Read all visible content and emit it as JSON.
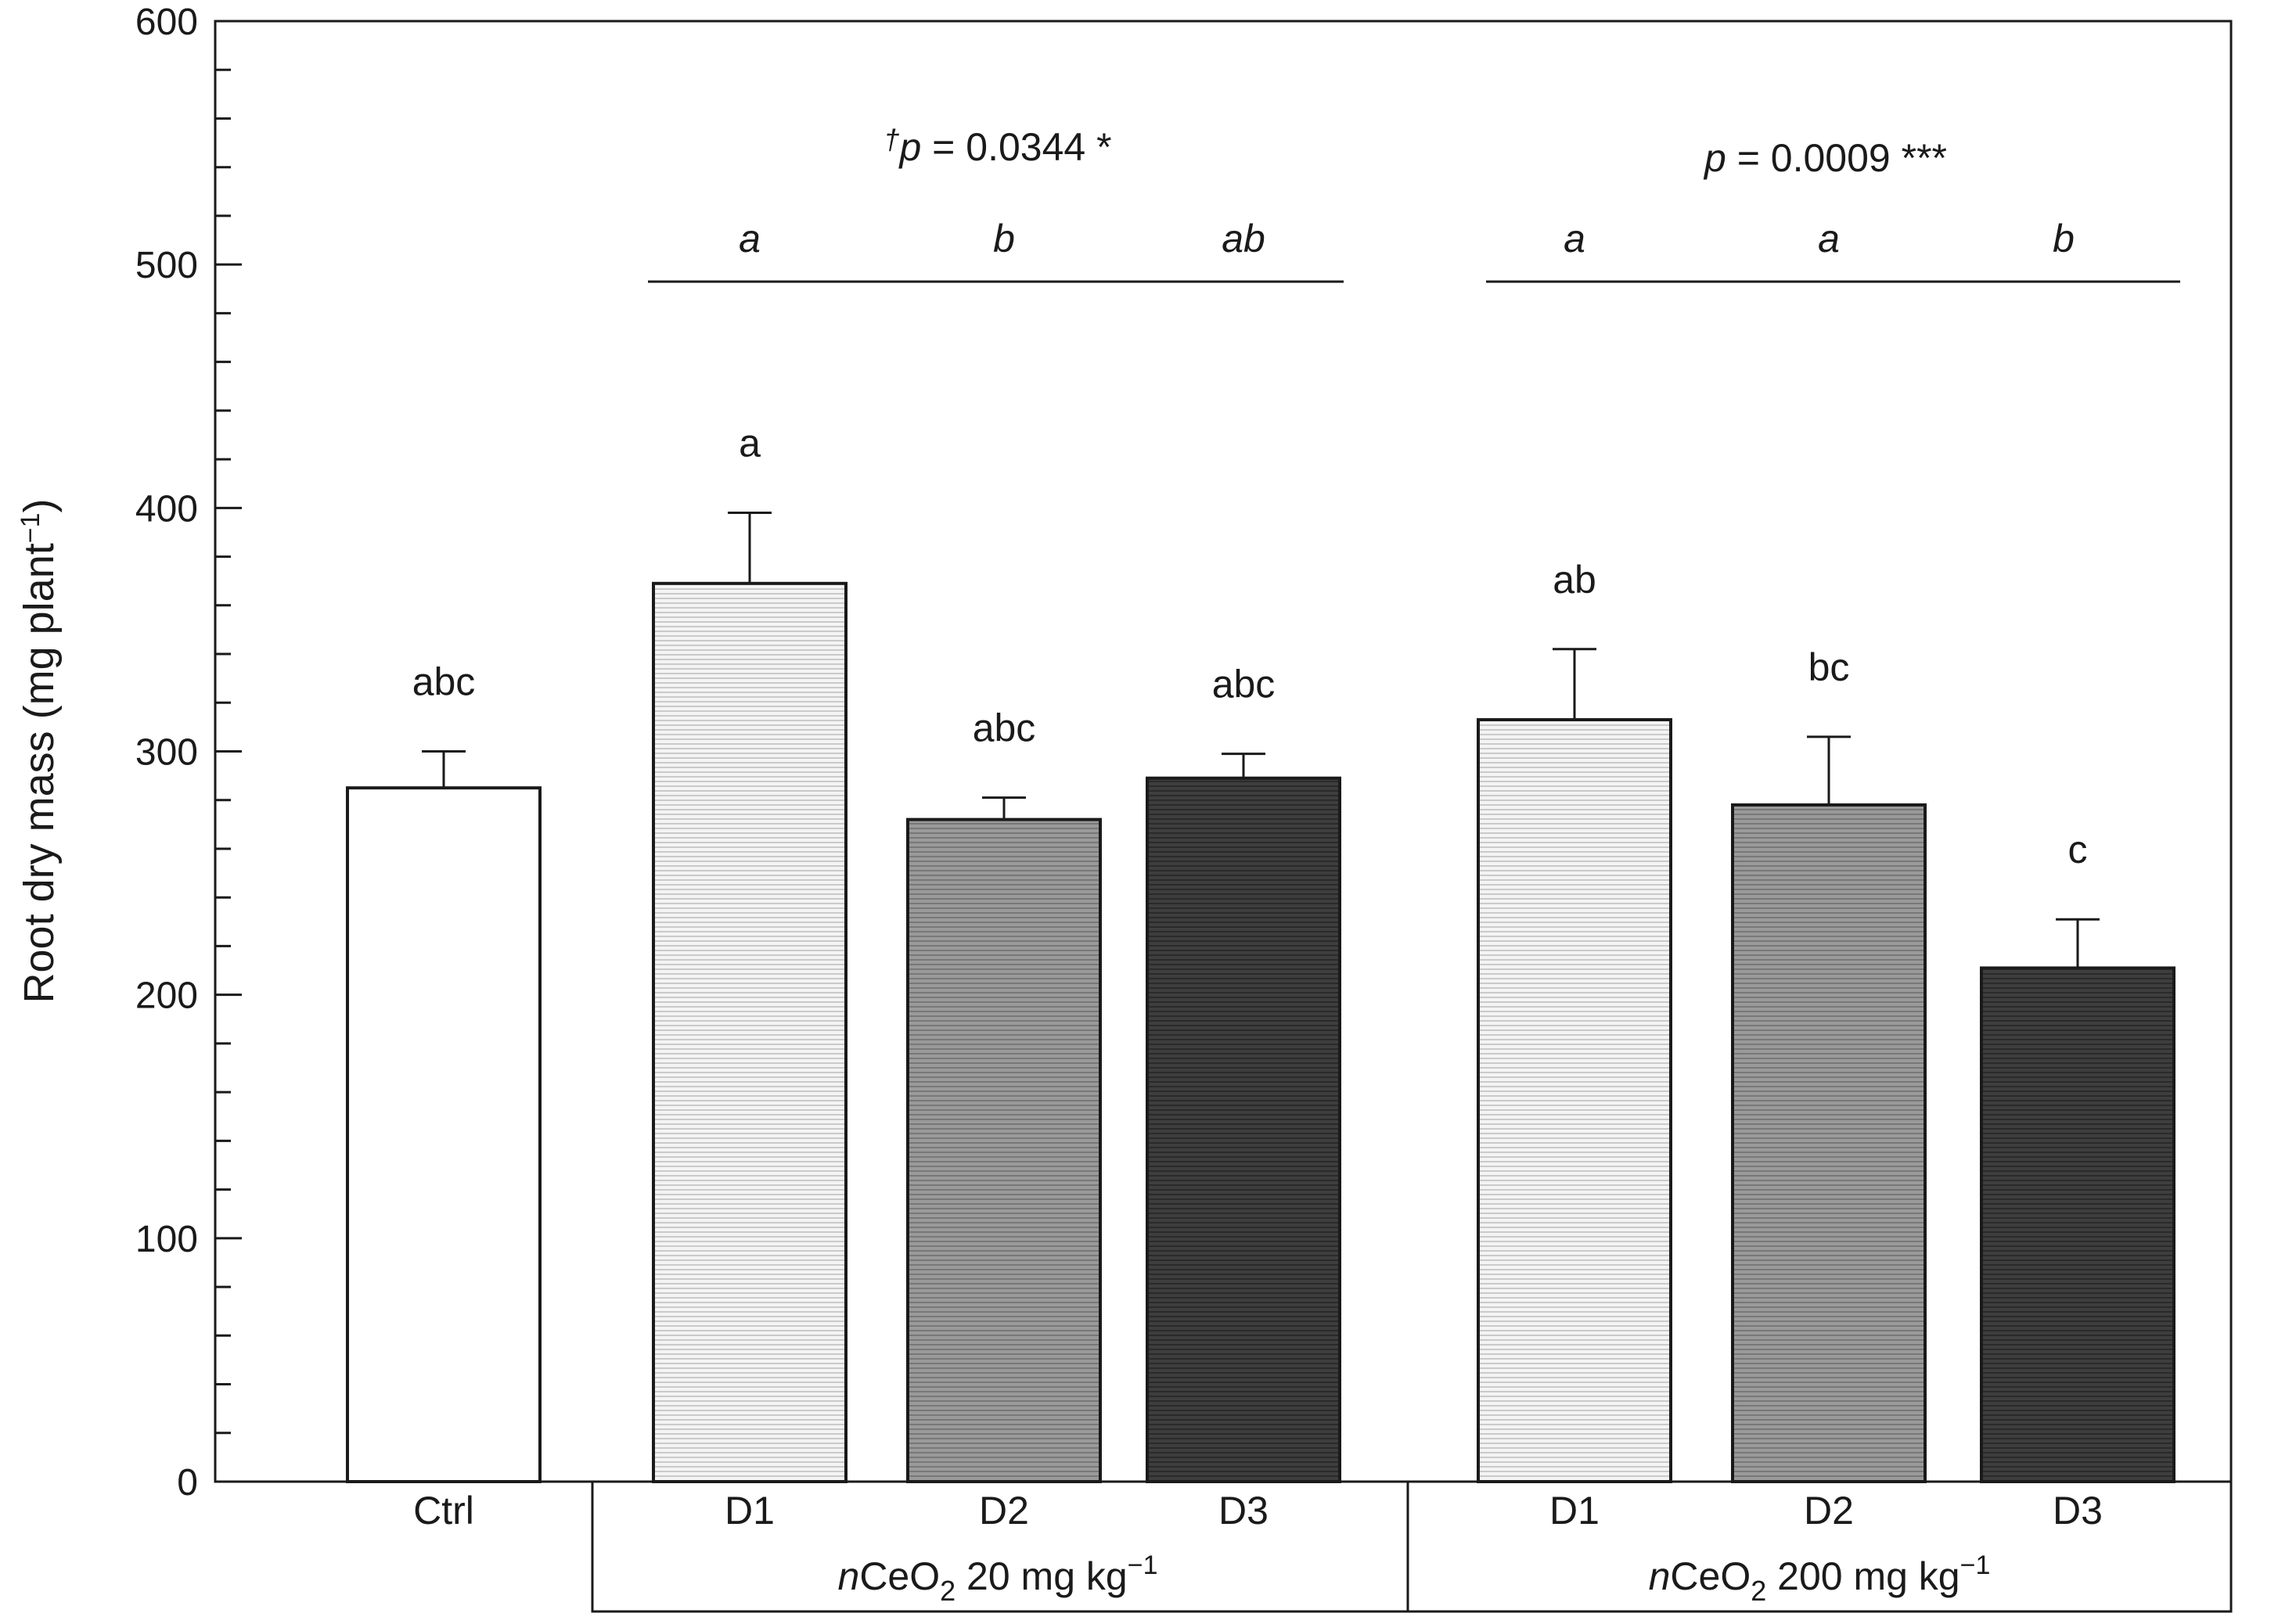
{
  "colors": {
    "ctrl": "#ffffff",
    "d1": "#ececec",
    "d2": "#8a8a8a",
    "d3": "#333333",
    "stroke": "#1a1a1a"
  },
  "chart_data": {
    "type": "bar",
    "ylabel": "Root dry mass (mg plant",
    "ylabel_sup": "−1",
    "ylabel_tail": ")",
    "ylim": [
      0,
      600
    ],
    "major_ticks": [
      0,
      100,
      200,
      300,
      400,
      500,
      600
    ],
    "minor_tick_step": 20,
    "categories": [
      "Ctrl",
      "D1",
      "D2",
      "D3",
      "D1",
      "D2",
      "D3"
    ],
    "values": [
      285,
      369,
      272,
      289,
      313,
      278,
      211
    ],
    "errors": [
      15,
      29,
      9,
      10,
      29,
      28,
      20
    ],
    "letters": [
      "abc",
      "a",
      "abc",
      "abc",
      "ab",
      "bc",
      "c"
    ],
    "fills": [
      "ctrl",
      "d1",
      "d2",
      "d3",
      "d1",
      "d2",
      "d3"
    ],
    "groups": [
      {
        "label_prefix": "n",
        "label_main": "CeO",
        "label_sub": "2",
        "label_mid": " 20 mg kg",
        "label_sup": "−1",
        "stat_dagger": "†",
        "stat_p": "p",
        "stat_rest": " = 0.0344 *",
        "letters": [
          "a",
          "b",
          "ab"
        ],
        "bars": [
          1,
          2,
          3
        ]
      },
      {
        "label_prefix": "n",
        "label_main": "CeO",
        "label_sub": "2",
        "label_mid": " 200 mg kg",
        "label_sup": "−1",
        "stat_dagger": "",
        "stat_p": "p",
        "stat_rest": " = 0.0009 ***",
        "letters": [
          "a",
          "a",
          "b"
        ],
        "bars": [
          4,
          5,
          6
        ]
      }
    ]
  }
}
